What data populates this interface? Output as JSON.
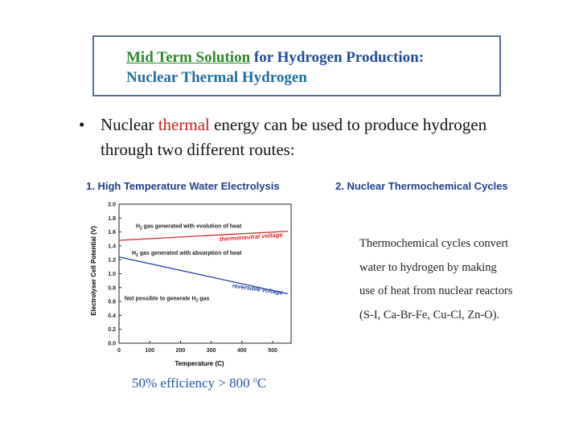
{
  "slide": {
    "title_part1": "Mid Term Solution",
    "title_part2": " for Hydrogen Production:",
    "title_line2": "Nuclear Thermal Hydrogen",
    "bullet_char": "•",
    "bullet_pre": "Nuclear ",
    "bullet_red": "thermal",
    "bullet_post": " energy can be used to produce hydrogen",
    "bullet_line2": "through two different routes:",
    "section1": "1.  High Temperature Water Electrolysis",
    "section2": "2.  Nuclear Thermochemical Cycles",
    "para_lines": [
      "Thermochemical cycles convert",
      "water to hydrogen by making",
      "use of heat from nuclear reactors",
      "(S-I, Ca-Br-Fe, Cu-Cl, Zn-O)."
    ],
    "efficiency_text": "50% efficiency > 800 ",
    "efficiency_sup": "o",
    "efficiency_unit": "C"
  },
  "chart_data": {
    "type": "line",
    "xlabel": "Temperature (C)",
    "ylabel": "Electrolyser Cell Potential (V)",
    "xlim": [
      0,
      560
    ],
    "ylim": [
      0,
      2.0
    ],
    "xticks": [
      0,
      100,
      200,
      300,
      400,
      500
    ],
    "yticks": [
      0.0,
      0.2,
      0.4,
      0.6,
      0.8,
      1.0,
      1.2,
      1.4,
      1.6,
      1.8,
      2.0
    ],
    "series": [
      {
        "name": "thermoneutral voltage",
        "color": "#d62828",
        "x": [
          0,
          550
        ],
        "y": [
          1.48,
          1.61
        ]
      },
      {
        "name": "reversible voltage",
        "color": "#1f3fa8",
        "x": [
          0,
          550
        ],
        "y": [
          1.24,
          0.71
        ]
      }
    ],
    "annotations": [
      {
        "text": "H",
        "sub": "2",
        "rest": " gas generated with evolution of heat"
      },
      {
        "text": "H",
        "sub": "2",
        "rest": " gas generated with absorption of heat"
      },
      {
        "text": "Not possible to generate  H",
        "sub": "2",
        "rest": " gas"
      }
    ]
  }
}
